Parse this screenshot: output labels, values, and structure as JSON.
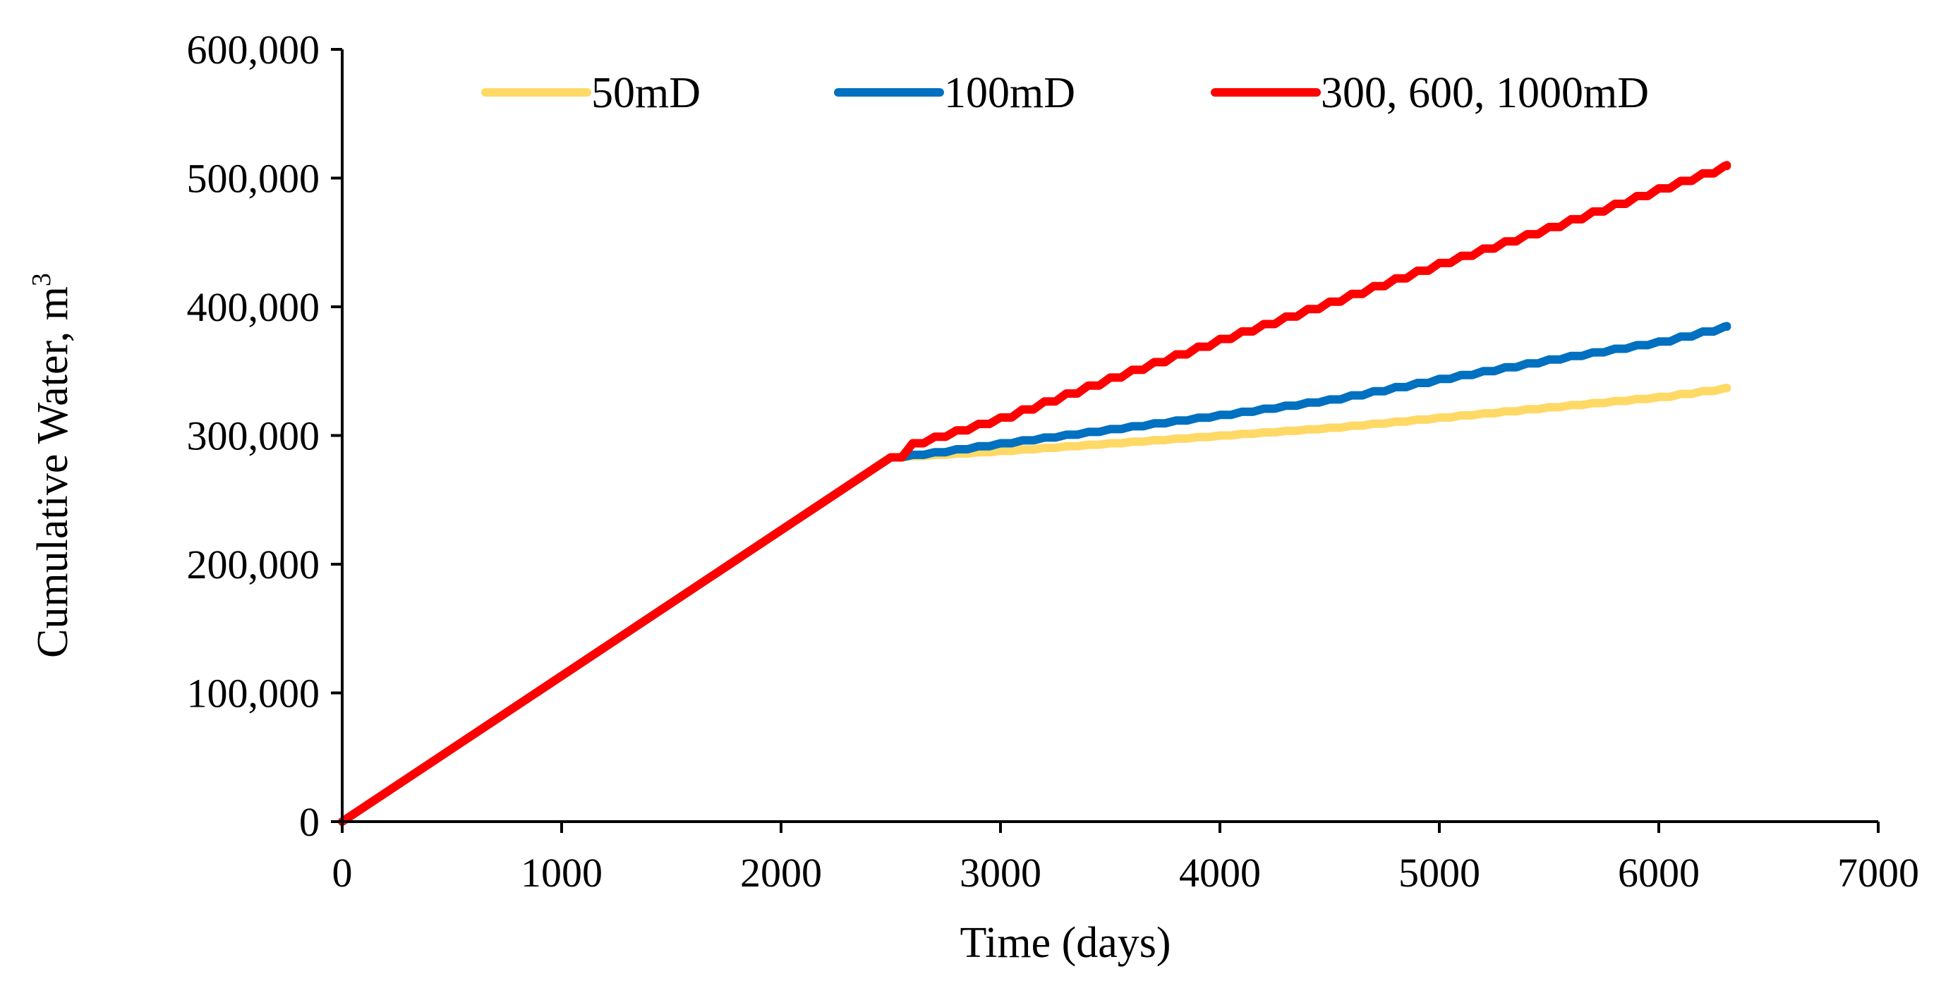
{
  "chart_data": {
    "type": "line",
    "title": "",
    "xlabel": "Time (days)",
    "ylabel": "Cumulative Water, m",
    "ylabel_superscript": "3",
    "xlim": [
      0,
      7000
    ],
    "ylim": [
      0,
      600000
    ],
    "x_ticks": [
      0,
      1000,
      2000,
      3000,
      4000,
      5000,
      6000,
      7000
    ],
    "x_tick_labels": [
      "0",
      "1000",
      "2000",
      "3000",
      "4000",
      "5000",
      "6000",
      "7000"
    ],
    "y_ticks": [
      0,
      100000,
      200000,
      300000,
      400000,
      500000,
      600000
    ],
    "y_tick_labels": [
      "0",
      "100,000",
      "200,000",
      "300,000",
      "400,000",
      "500,000",
      "600,000"
    ],
    "grid": false,
    "legend_position": "top",
    "series": [
      {
        "name": "50mD",
        "color": "#FFD966",
        "step": 100,
        "points": [
          [
            0,
            0
          ],
          [
            2500,
            283000
          ],
          [
            2700,
            285000
          ],
          [
            3000,
            288000
          ],
          [
            3500,
            294000
          ],
          [
            4000,
            300000
          ],
          [
            4500,
            306000
          ],
          [
            5000,
            314000
          ],
          [
            5500,
            322000
          ],
          [
            6000,
            330000
          ],
          [
            6310,
            337000
          ]
        ]
      },
      {
        "name": "100mD",
        "color": "#0070C0",
        "step": 100,
        "points": [
          [
            0,
            0
          ],
          [
            2500,
            283000
          ],
          [
            2700,
            287000
          ],
          [
            3000,
            294000
          ],
          [
            3500,
            305000
          ],
          [
            4000,
            316000
          ],
          [
            4500,
            328000
          ],
          [
            5000,
            344000
          ],
          [
            5500,
            359000
          ],
          [
            6000,
            373000
          ],
          [
            6310,
            385000
          ]
        ]
      },
      {
        "name": "300, 600, 1000mD",
        "color": "#FF0000",
        "step": 100,
        "points": [
          [
            0,
            0
          ],
          [
            2500,
            283000
          ],
          [
            2600,
            294000
          ],
          [
            3000,
            314000
          ],
          [
            3500,
            345000
          ],
          [
            4000,
            375000
          ],
          [
            4500,
            404000
          ],
          [
            5000,
            434000
          ],
          [
            5500,
            462000
          ],
          [
            6000,
            492000
          ],
          [
            6310,
            510000
          ]
        ]
      }
    ]
  }
}
